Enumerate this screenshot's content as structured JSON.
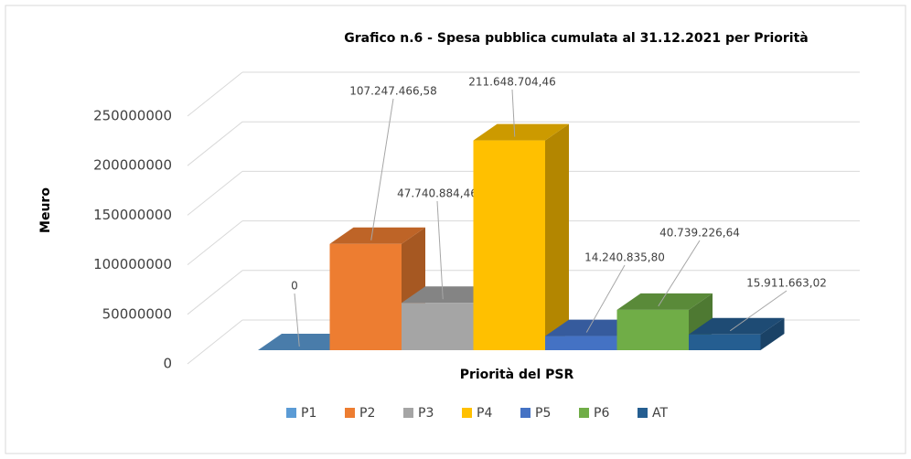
{
  "chart_data": {
    "type": "bar3d",
    "title": "Grafico n.6 - Spesa pubblica cumulata al 31.12.2021 per Priorità",
    "y_label": "Meuro",
    "x_label": "Priorità del PSR",
    "series": [
      {
        "name": "P1",
        "color": "#5b9bd5",
        "values": [
          0
        ],
        "value_labels": [
          "0"
        ]
      },
      {
        "name": "P2",
        "color": "#ed7d31",
        "values": [
          107247466.58
        ],
        "value_labels": [
          "107.247.466,58"
        ]
      },
      {
        "name": "P3",
        "color": "#a5a5a5",
        "values": [
          47740884.46
        ],
        "value_labels": [
          "47.740.884,46"
        ]
      },
      {
        "name": "P4",
        "color": "#ffc000",
        "values": [
          211648704.46
        ],
        "value_labels": [
          "211.648.704,46"
        ]
      },
      {
        "name": "P5",
        "color": "#4472c4",
        "values": [
          14240835.8
        ],
        "value_labels": [
          "14.240.835,80"
        ]
      },
      {
        "name": "P6",
        "color": "#70ad47",
        "values": [
          40739226.64
        ],
        "value_labels": [
          "40.739.226,64"
        ]
      },
      {
        "name": "AT",
        "color": "#255e91",
        "values": [
          15911663.02
        ],
        "value_labels": [
          "15.911.663,02"
        ]
      }
    ],
    "ylim": [
      0,
      250000000
    ],
    "yticks": [
      0,
      50000000,
      100000000,
      150000000,
      200000000,
      250000000
    ],
    "grid": true,
    "legend": "bottom"
  }
}
